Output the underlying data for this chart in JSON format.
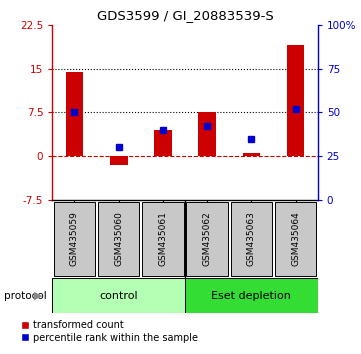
{
  "title": "GDS3599 / GI_20883539-S",
  "samples": [
    "GSM435059",
    "GSM435060",
    "GSM435061",
    "GSM435062",
    "GSM435063",
    "GSM435064"
  ],
  "red_values": [
    14.5,
    -1.5,
    4.5,
    7.5,
    0.5,
    19.0
  ],
  "blue_values": [
    50,
    30,
    40,
    42,
    35,
    52
  ],
  "left_ylim": [
    -7.5,
    22.5
  ],
  "right_ylim": [
    0,
    100
  ],
  "left_yticks": [
    -7.5,
    0,
    7.5,
    15,
    22.5
  ],
  "right_yticks": [
    0,
    25,
    50,
    75,
    100
  ],
  "left_ytick_labels": [
    "-7.5",
    "0",
    "7.5",
    "15",
    "22.5"
  ],
  "right_ytick_labels": [
    "0",
    "25",
    "50",
    "75",
    "100%"
  ],
  "hline_y": [
    7.5,
    15
  ],
  "zero_line_y": 0,
  "bar_color": "#cc0000",
  "square_color": "#0000cc",
  "ctrl_color": "#b3ffb3",
  "eset_color": "#33dd33",
  "protocol_groups": [
    {
      "label": "control"
    },
    {
      "label": "Eset depletion"
    }
  ],
  "legend_red_label": "transformed count",
  "legend_blue_label": "percentile rank within the sample",
  "protocol_label": "protocol",
  "bg_color": "#ffffff",
  "tick_bg_color": "#c8c8c8",
  "left_axis_color": "#cc0000",
  "right_axis_color": "#0000cc",
  "bar_width": 0.4,
  "blue_markersize": 5
}
